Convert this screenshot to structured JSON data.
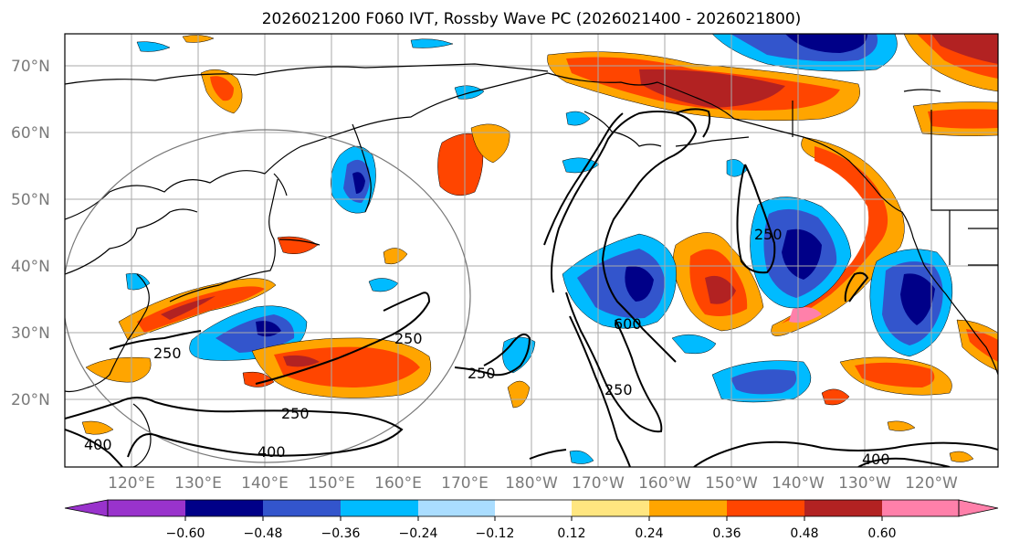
{
  "title": "2026021200 F060 IVT, Rossby Wave PC (2026021400 - 2026021800)",
  "lat_labels": [
    "70°N",
    "60°N",
    "50°N",
    "40°N",
    "30°N",
    "20°N"
  ],
  "lon_labels": [
    "120°E",
    "130°E",
    "140°E",
    "150°E",
    "160°E",
    "170°E",
    "180°W",
    "170°W",
    "160°W",
    "150°W",
    "140°W",
    "130°W",
    "120°W"
  ],
  "colorbar": {
    "colors": [
      "#9933cc",
      "#000088",
      "#3355cc",
      "#00bbff",
      "#aaddff",
      "#ffffff",
      "#ffe680",
      "#ffa500",
      "#ff4500",
      "#b22222",
      "#ff80aa"
    ],
    "tick_labels": [
      "−0.60",
      "−0.48",
      "−0.36",
      "−0.24",
      "−0.12",
      "0.12",
      "0.24",
      "0.36",
      "0.48",
      "0.60"
    ]
  },
  "contour_labels": [
    "250",
    "250",
    "250",
    "250",
    "250",
    "250",
    "400",
    "400",
    "400",
    "600"
  ]
}
